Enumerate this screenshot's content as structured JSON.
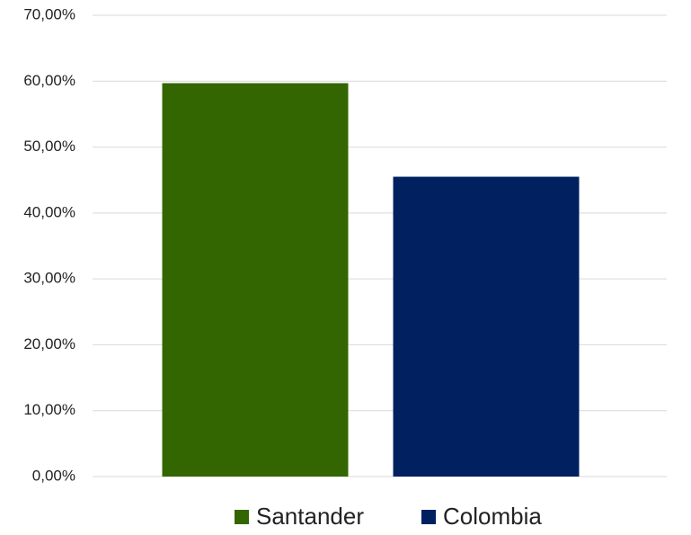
{
  "chart_data": {
    "type": "bar",
    "categories": [
      null
    ],
    "series": [
      {
        "name": "Santander",
        "color": "#336600",
        "values": [
          59.7
        ]
      },
      {
        "name": "Colombia",
        "color": "#002060",
        "values": [
          45.5
        ]
      }
    ],
    "ylim": [
      0,
      70
    ],
    "yticks": [
      {
        "value": 0,
        "label": "0,00%"
      },
      {
        "value": 10,
        "label": "10,00%"
      },
      {
        "value": 20,
        "label": "20,00%"
      },
      {
        "value": 30,
        "label": "30,00%"
      },
      {
        "value": 40,
        "label": "40,00%"
      },
      {
        "value": 50,
        "label": "50,00%"
      },
      {
        "value": 60,
        "label": "60,00%"
      },
      {
        "value": 70,
        "label": "70,00%"
      }
    ],
    "grid": true,
    "legend": "bottom"
  }
}
